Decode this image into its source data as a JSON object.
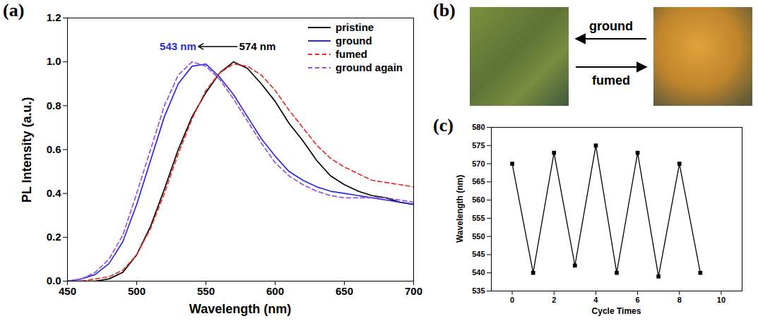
{
  "chart_data": [
    {
      "title": "(a)",
      "type": "line",
      "x_label": "Wavelength (nm)",
      "y_label": "PL Intensity (a.u.)",
      "x": [
        450,
        460,
        470,
        480,
        490,
        500,
        510,
        520,
        530,
        540,
        550,
        560,
        570,
        580,
        590,
        600,
        610,
        620,
        630,
        640,
        650,
        660,
        670,
        680,
        690,
        700
      ],
      "series": [
        {
          "name": "pristine",
          "color": "#000000",
          "line_style": "solid",
          "values": [
            0,
            0,
            0,
            0.01,
            0.04,
            0.12,
            0.25,
            0.42,
            0.6,
            0.75,
            0.86,
            0.95,
            1.0,
            0.97,
            0.9,
            0.82,
            0.72,
            0.64,
            0.55,
            0.48,
            0.44,
            0.41,
            0.39,
            0.38,
            0.36,
            0.35
          ]
        },
        {
          "name": "ground",
          "color": "#2b2bdb",
          "line_style": "solid",
          "values": [
            0,
            0.01,
            0.03,
            0.08,
            0.18,
            0.35,
            0.55,
            0.75,
            0.9,
            0.98,
            0.99,
            0.93,
            0.85,
            0.75,
            0.65,
            0.57,
            0.5,
            0.46,
            0.43,
            0.41,
            0.4,
            0.39,
            0.38,
            0.37,
            0.36,
            0.35
          ]
        },
        {
          "name": "fumed",
          "color": "#e8302a",
          "line_style": "dashed",
          "values": [
            0,
            0,
            0.01,
            0.02,
            0.05,
            0.12,
            0.24,
            0.4,
            0.58,
            0.74,
            0.87,
            0.95,
            0.99,
            0.98,
            0.94,
            0.87,
            0.78,
            0.7,
            0.62,
            0.56,
            0.52,
            0.49,
            0.46,
            0.45,
            0.44,
            0.43
          ]
        },
        {
          "name": "ground again",
          "color": "#9b4fe0",
          "line_style": "dashed",
          "values": [
            0,
            0.01,
            0.04,
            0.1,
            0.21,
            0.4,
            0.6,
            0.8,
            0.94,
            1.0,
            0.98,
            0.92,
            0.83,
            0.73,
            0.63,
            0.54,
            0.48,
            0.44,
            0.41,
            0.39,
            0.38,
            0.38,
            0.38,
            0.38,
            0.37,
            0.36
          ]
        }
      ],
      "xlim": [
        450,
        700
      ],
      "xticks": [
        450,
        500,
        550,
        600,
        650,
        700
      ],
      "ylim": [
        0,
        1.2
      ],
      "yticks": [
        {
          "value": 0,
          "label": "0.0"
        },
        0.2,
        0.4,
        0.6,
        0.8,
        {
          "value": 1,
          "label": "1.0"
        },
        1.2
      ],
      "legend": "upper right",
      "annotations": [
        {
          "text": "543 nm",
          "x": 543,
          "y": 1.07,
          "color": "#2b2bdb"
        },
        {
          "text": "574 nm",
          "x": 574,
          "y": 1.07,
          "color": "#000000"
        }
      ]
    },
    {
      "title": "(c)",
      "type": "line",
      "x_label": "Cycle Times",
      "y_label": "Wavelength (nm)",
      "x": [
        0,
        1,
        2,
        3,
        4,
        5,
        6,
        7,
        8,
        9
      ],
      "values": [
        570,
        540,
        573,
        542,
        575,
        540,
        573,
        539,
        570,
        540
      ],
      "color": "#000000",
      "marker": "square",
      "xlim": [
        -1,
        11
      ],
      "xticks": [
        0,
        2,
        4,
        6,
        8,
        10
      ],
      "ylim": [
        535,
        580
      ],
      "yticks": [
        535,
        540,
        545,
        550,
        555,
        560,
        565,
        570,
        575,
        580
      ]
    }
  ],
  "panel_b": {
    "title": "(b)",
    "arrows": [
      {
        "text": "ground",
        "direction": "left"
      },
      {
        "text": "fumed",
        "direction": "right"
      }
    ]
  }
}
